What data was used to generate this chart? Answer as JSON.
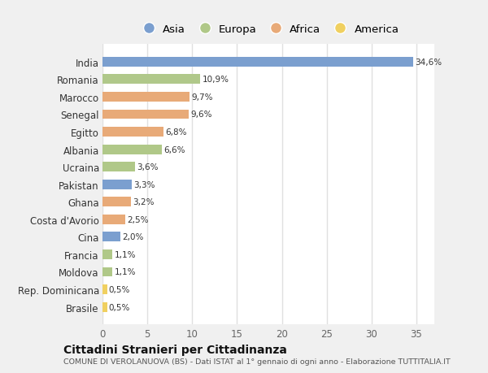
{
  "countries": [
    "India",
    "Romania",
    "Marocco",
    "Senegal",
    "Egitto",
    "Albania",
    "Ucraina",
    "Pakistan",
    "Ghana",
    "Costa d'Avorio",
    "Cina",
    "Francia",
    "Moldova",
    "Rep. Dominicana",
    "Brasile"
  ],
  "values": [
    34.6,
    10.9,
    9.7,
    9.6,
    6.8,
    6.6,
    3.6,
    3.3,
    3.2,
    2.5,
    2.0,
    1.1,
    1.1,
    0.5,
    0.5
  ],
  "labels": [
    "34,6%",
    "10,9%",
    "9,7%",
    "9,6%",
    "6,8%",
    "6,6%",
    "3,6%",
    "3,3%",
    "3,2%",
    "2,5%",
    "2,0%",
    "1,1%",
    "1,1%",
    "0,5%",
    "0,5%"
  ],
  "colors": [
    "#7b9fcf",
    "#b0c88a",
    "#e8aa78",
    "#e8aa78",
    "#e8aa78",
    "#b0c888",
    "#b0c888",
    "#7b9fcf",
    "#e8aa78",
    "#e8aa78",
    "#7b9fcf",
    "#b0c888",
    "#b0c888",
    "#f0d060",
    "#f0d060"
  ],
  "legend_labels": [
    "Asia",
    "Europa",
    "Africa",
    "America"
  ],
  "legend_colors": [
    "#7b9fcf",
    "#b0c888",
    "#e8aa78",
    "#f0d060"
  ],
  "xlim": [
    0,
    37
  ],
  "xticks": [
    0,
    5,
    10,
    15,
    20,
    25,
    30,
    35
  ],
  "title": "Cittadini Stranieri per Cittadinanza",
  "subtitle": "COMUNE DI VEROLANUOVA (BS) - Dati ISTAT al 1° gennaio di ogni anno - Elaborazione TUTTITALIA.IT",
  "bg_color": "#f0f0f0",
  "plot_bg_color": "#ffffff",
  "bar_height": 0.55
}
